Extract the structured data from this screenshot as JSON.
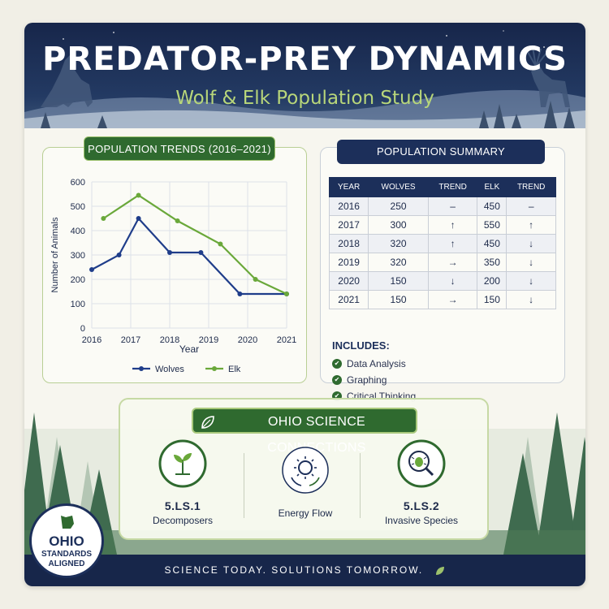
{
  "header": {
    "title": "PREDATOR-PREY DYNAMICS",
    "subtitle": "Wolf & Elk Population Study"
  },
  "chart_panel": {
    "title": "POPULATION TRENDS (2016–2021)"
  },
  "chart_data": {
    "type": "line",
    "x": [
      2016,
      2017,
      2018,
      2019,
      2020,
      2021
    ],
    "series": [
      {
        "name": "Wolves",
        "values": [
          240,
          300,
          450,
          310,
          310,
          140,
          140
        ],
        "x": [
          2016,
          2016.7,
          2017.2,
          2018,
          2018.8,
          2019.8,
          2021
        ],
        "color": "#1f3d8a"
      },
      {
        "name": "Elk",
        "values": [
          450,
          545,
          440,
          345,
          200,
          140
        ],
        "x": [
          2016.3,
          2017.2,
          2018.2,
          2019.3,
          2020.2,
          2021
        ],
        "color": "#6aa83a"
      }
    ],
    "xlabel": "Year",
    "ylabel": "Number of Animals",
    "ylim": [
      0,
      600
    ],
    "yticks": [
      0,
      100,
      200,
      300,
      400,
      500,
      600
    ],
    "xticks": [
      2016,
      2017,
      2018,
      2019,
      2020,
      2021
    ],
    "grid": true,
    "legend_position": "bottom"
  },
  "summary": {
    "title": "POPULATION SUMMARY",
    "columns": [
      "YEAR",
      "WOLVES",
      "TREND",
      "ELK",
      "TREND"
    ],
    "rows": [
      {
        "year": "2016",
        "wolves": "250",
        "wolves_trend": "–",
        "wolves_trend_type": "neutral",
        "elk": "450",
        "elk_trend": "–",
        "elk_trend_type": "neutral"
      },
      {
        "year": "2017",
        "wolves": "300",
        "wolves_trend": "↑",
        "wolves_trend_type": "up",
        "elk": "550",
        "elk_trend": "↑",
        "elk_trend_type": "up"
      },
      {
        "year": "2018",
        "wolves": "320",
        "wolves_trend": "↑",
        "wolves_trend_type": "up",
        "elk": "450",
        "elk_trend": "↓",
        "elk_trend_type": "down"
      },
      {
        "year": "2019",
        "wolves": "320",
        "wolves_trend": "→",
        "wolves_trend_type": "right",
        "elk": "350",
        "elk_trend": "↓",
        "elk_trend_type": "down"
      },
      {
        "year": "2020",
        "wolves": "150",
        "wolves_trend": "↓",
        "wolves_trend_type": "down",
        "elk": "200",
        "elk_trend": "↓",
        "elk_trend_type": "down"
      },
      {
        "year": "2021",
        "wolves": "150",
        "wolves_trend": "→",
        "wolves_trend_type": "right",
        "elk": "150",
        "elk_trend": "↓",
        "elk_trend_type": "down"
      }
    ],
    "includes_title": "INCLUDES:",
    "includes": [
      "Data Analysis",
      "Graphing",
      "Critical Thinking"
    ]
  },
  "ohio": {
    "title": "OHIO SCIENCE CONNECTIONS",
    "items": [
      {
        "code": "5.LS.1",
        "name": "Decomposers",
        "icon": "seedling-icon"
      },
      {
        "code": "",
        "name": "Energy Flow",
        "icon": "sun-cycle-icon"
      },
      {
        "code": "5.LS.2",
        "name": "Invasive Species",
        "icon": "bug-magnifier-icon"
      }
    ]
  },
  "badge": {
    "line1": "OHIO",
    "line2": "STANDARDS",
    "line3": "ALIGNED"
  },
  "footer": {
    "tagline": "SCIENCE TODAY. SOLUTIONS TOMORROW."
  },
  "colors": {
    "navy": "#1c2f5a",
    "green": "#2f6a2f",
    "wolves": "#1f3d8a",
    "elk": "#6aa83a"
  }
}
